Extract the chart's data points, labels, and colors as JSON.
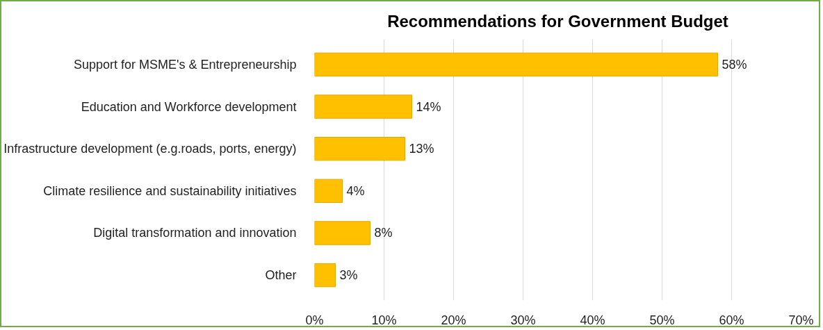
{
  "chart_data": {
    "type": "bar",
    "orientation": "horizontal",
    "title": "Recommendations for Government Budget",
    "categories": [
      "Support for MSME's & Entrepreneurship",
      "Education and Workforce development",
      "Infrastructure development (e.g.roads, ports, energy)",
      "Climate resilience and sustainability initiatives",
      "Digital transformation and innovation",
      "Other"
    ],
    "values": [
      58,
      14,
      13,
      4,
      8,
      3
    ],
    "value_labels": [
      "58%",
      "14%",
      "13%",
      "4%",
      "8%",
      "3%"
    ],
    "color": "#ffc000",
    "xlim": [
      0,
      70
    ],
    "xticks": [
      {
        "value": 0,
        "label": "0%"
      },
      {
        "value": 10,
        "label": "10%"
      },
      {
        "value": 20,
        "label": "20%"
      },
      {
        "value": 30,
        "label": "30%"
      },
      {
        "value": 40,
        "label": "40%"
      },
      {
        "value": 50,
        "label": "50%"
      },
      {
        "value": 60,
        "label": "60%"
      },
      {
        "value": 70,
        "label": "70%"
      }
    ],
    "grid": "x"
  }
}
